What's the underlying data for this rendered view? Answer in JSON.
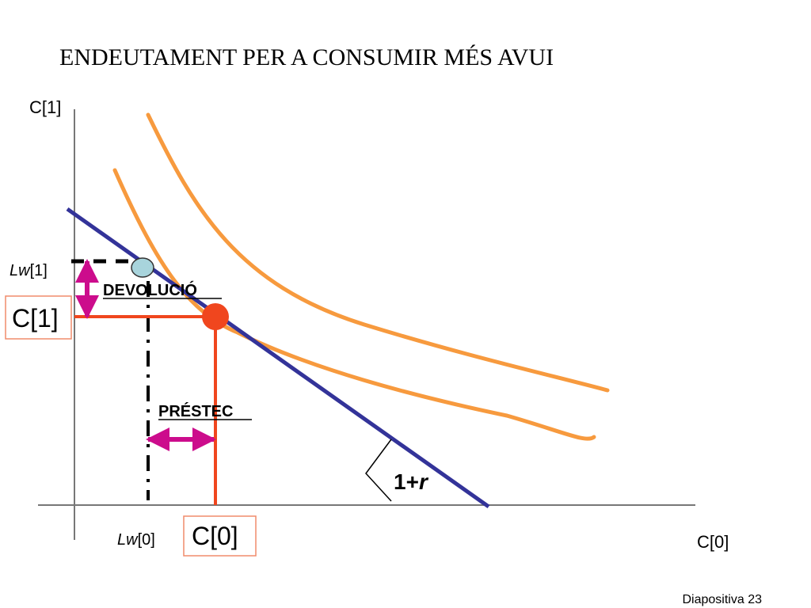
{
  "slide": {
    "title": "ENDEUTAMENT PER A CONSUMIR MÉS AVUI",
    "footer": "Diapositiva 23"
  },
  "axes": {
    "y_label": "C[1]",
    "x_label": "C[0]"
  },
  "labels": {
    "lw1": {
      "italic": "Lw",
      "rest": "[1]"
    },
    "lw0": {
      "italic": "Lw",
      "rest": "[0]"
    },
    "c1_box": "C[1]",
    "c0_box": "C[0]",
    "devolucio": "DEVOLUCIÓ",
    "prestec": "PRÉSTEC",
    "slope": {
      "plain": "1+",
      "italic": "r"
    }
  },
  "colors": {
    "budget_line": "#333399",
    "indifference_curve": "#f79a3e",
    "consumption_guide": "#f0461e",
    "arrow": "#cc0c8c",
    "endowment_point": "#a8d4dc",
    "box_border": "#f08c6c"
  }
}
